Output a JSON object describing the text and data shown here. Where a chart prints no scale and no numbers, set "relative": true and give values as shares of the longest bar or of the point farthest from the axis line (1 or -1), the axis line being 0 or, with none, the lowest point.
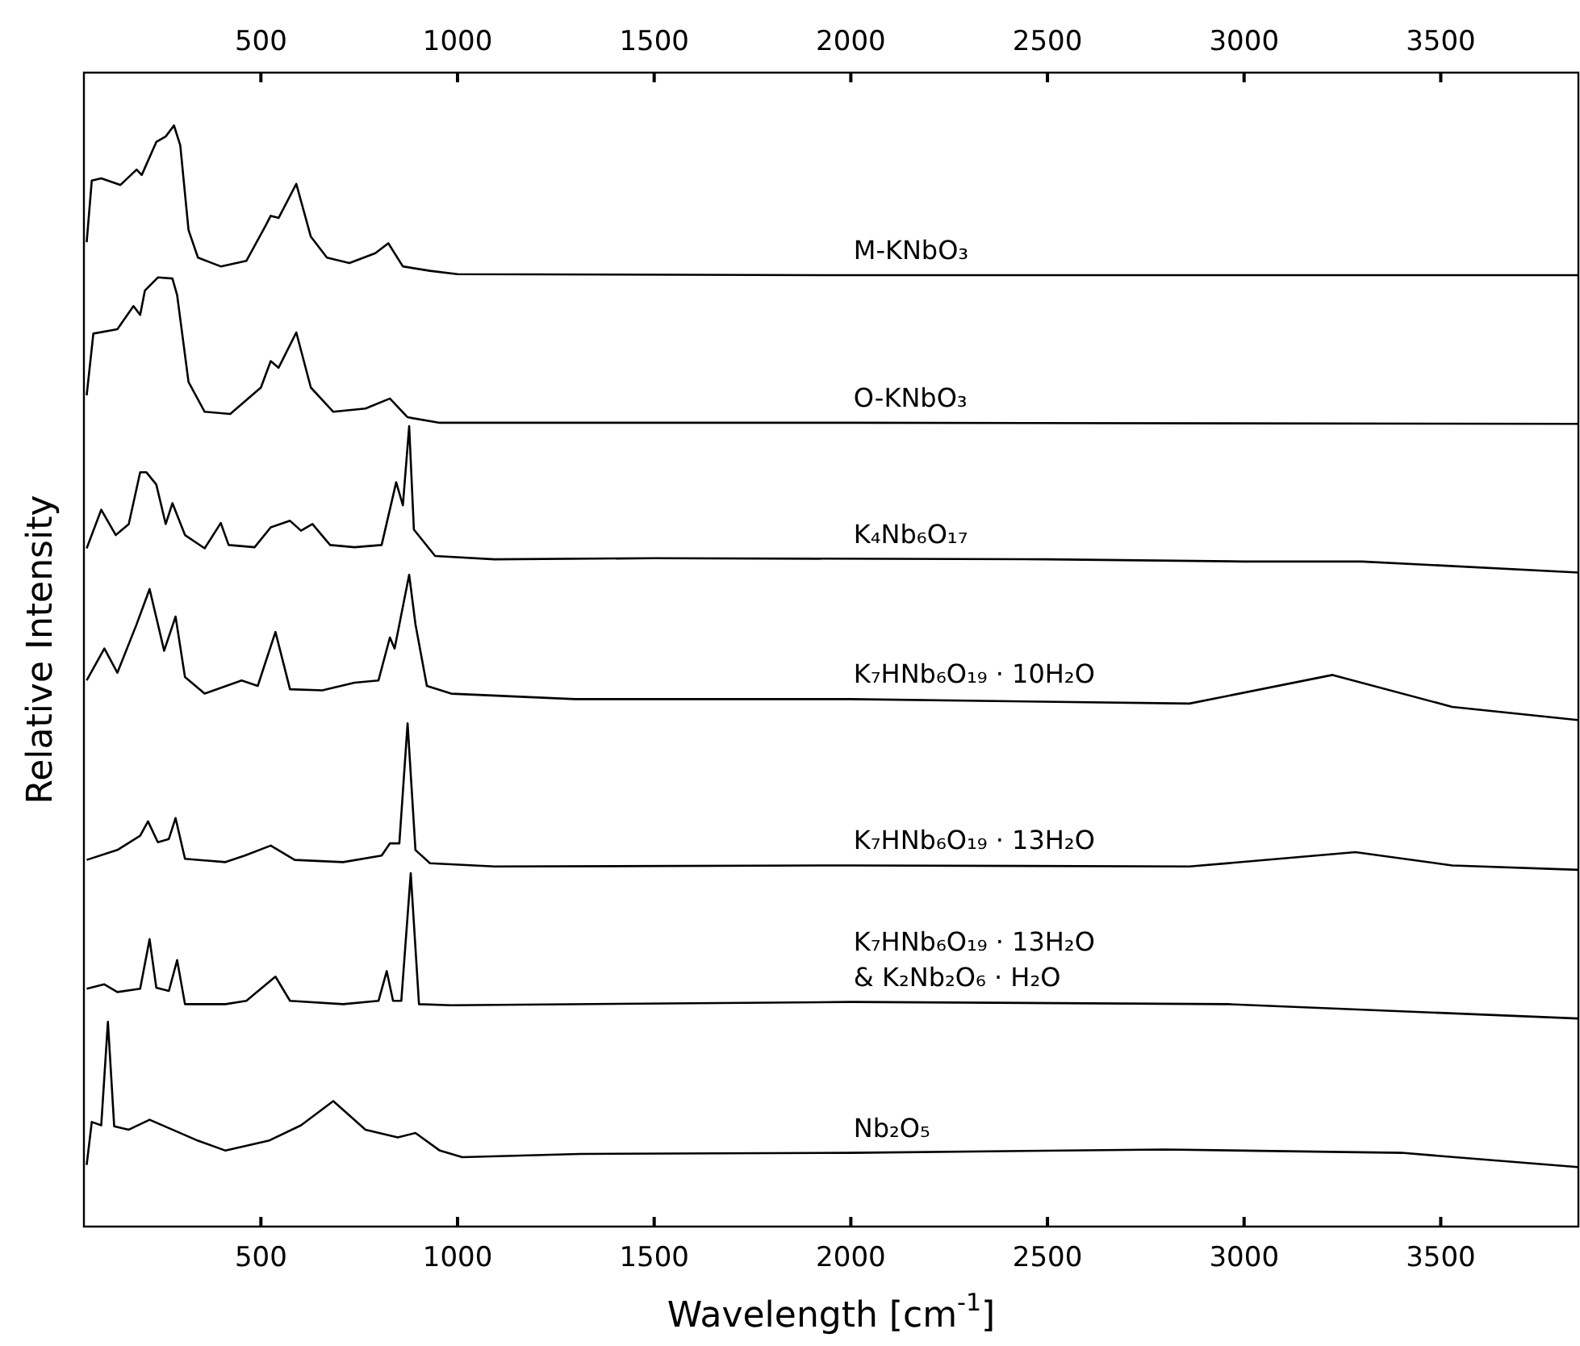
{
  "chart_data": {
    "type": "line",
    "relative": true,
    "xlabel": "Wavelength [cm$^{-1}$]",
    "ylabel": "Relative Intensity",
    "xlim": [
      50,
      3850
    ],
    "xticks": [
      500,
      1000,
      1500,
      2000,
      2500,
      3000,
      3500
    ],
    "x2lim": [
      50,
      3850
    ],
    "x2ticks": [
      500,
      1000,
      1500,
      2000,
      2500,
      3000,
      3500
    ],
    "tick_labels": "x",
    "series": [
      {
        "name": "M-KNbO₃",
        "color": "#000000",
        "x": [
          57,
          70,
          94,
          143,
          184,
          197,
          234,
          258,
          279,
          295,
          316,
          340,
          398,
          463,
          512,
          525,
          545,
          590,
          627,
          668,
          725,
          791,
          824,
          861,
          930,
          1000,
          2000,
          3850
        ],
        "values": [
          0.894,
          0.95,
          0.952,
          0.946,
          0.96,
          0.955,
          0.985,
          0.99,
          1,
          0.982,
          0.905,
          0.88,
          0.872,
          0.877,
          0.909,
          0.918,
          0.916,
          0.947,
          0.899,
          0.88,
          0.875,
          0.884,
          0.893,
          0.872,
          0.868,
          0.865,
          0.864,
          0.864
        ]
      },
      {
        "name": "O-KNbO₃",
        "color": "#000000",
        "x": [
          57,
          74,
          135,
          176,
          193,
          205,
          238,
          275,
          287,
          316,
          357,
          422,
          500,
          525,
          545,
          590,
          627,
          684,
          766,
          828,
          873,
          955,
          2000,
          3850
        ],
        "values": [
          0.755,
          0.811,
          0.815,
          0.836,
          0.828,
          0.85,
          0.862,
          0.861,
          0.846,
          0.767,
          0.74,
          0.738,
          0.762,
          0.786,
          0.78,
          0.812,
          0.762,
          0.74,
          0.743,
          0.752,
          0.735,
          0.73,
          0.73,
          0.729
        ]
      },
      {
        "name": "K₄Nb₆O₁₇",
        "color": "#000000",
        "x": [
          57,
          94,
          131,
          164,
          193,
          209,
          234,
          258,
          275,
          307,
          357,
          398,
          418,
          484,
          525,
          574,
          602,
          631,
          676,
          738,
          807,
          844,
          861,
          877,
          889,
          943,
          1094,
          1500,
          2500,
          3000,
          3300,
          3850
        ],
        "values": [
          0.616,
          0.651,
          0.628,
          0.638,
          0.685,
          0.685,
          0.674,
          0.638,
          0.657,
          0.628,
          0.616,
          0.639,
          0.619,
          0.617,
          0.635,
          0.641,
          0.632,
          0.638,
          0.619,
          0.617,
          0.619,
          0.676,
          0.655,
          0.727,
          0.633,
          0.609,
          0.606,
          0.607,
          0.606,
          0.604,
          0.604,
          0.594
        ]
      },
      {
        "name": "K₇HNb₆O₁₉ · 10H₂O",
        "color": "#000000",
        "x": [
          57,
          102,
          135,
          184,
          217,
          254,
          283,
          307,
          357,
          451,
          492,
          537,
          574,
          656,
          738,
          799,
          828,
          840,
          877,
          893,
          922,
          984,
          1299,
          2000,
          2861,
          3225,
          3529,
          3848
        ],
        "values": [
          0.496,
          0.525,
          0.503,
          0.547,
          0.579,
          0.523,
          0.554,
          0.499,
          0.484,
          0.496,
          0.491,
          0.54,
          0.488,
          0.487,
          0.494,
          0.496,
          0.535,
          0.525,
          0.592,
          0.547,
          0.491,
          0.484,
          0.479,
          0.479,
          0.475,
          0.501,
          0.472,
          0.46
        ]
      },
      {
        "name": "K₇HNb₆O₁₉ · 13H₂O",
        "color": "#000000",
        "x": [
          57,
          135,
          193,
          213,
          238,
          266,
          283,
          307,
          410,
          459,
          525,
          586,
          709,
          807,
          828,
          852,
          873,
          893,
          930,
          1094,
          2000,
          2861,
          3283,
          3529,
          3848
        ],
        "values": [
          0.333,
          0.342,
          0.355,
          0.368,
          0.349,
          0.352,
          0.371,
          0.334,
          0.331,
          0.337,
          0.346,
          0.333,
          0.331,
          0.337,
          0.348,
          0.348,
          0.457,
          0.342,
          0.33,
          0.327,
          0.328,
          0.327,
          0.34,
          0.328,
          0.324
        ]
      },
      {
        "name": "K₇HNb₆O₁₉ · 13H₂O\n& K₂Nb₂O₆ · H₂O",
        "color": "#000000",
        "x": [
          57,
          102,
          135,
          193,
          217,
          234,
          266,
          287,
          307,
          410,
          463,
          537,
          574,
          709,
          799,
          820,
          836,
          857,
          881,
          902,
          984,
          2000,
          2959,
          3848
        ],
        "values": [
          0.216,
          0.22,
          0.213,
          0.216,
          0.261,
          0.217,
          0.214,
          0.242,
          0.202,
          0.202,
          0.205,
          0.227,
          0.205,
          0.202,
          0.205,
          0.232,
          0.205,
          0.205,
          0.321,
          0.202,
          0.201,
          0.204,
          0.202,
          0.189
        ]
      },
      {
        "name": "Nb₂O₅",
        "color": "#000000",
        "x": [
          57,
          70,
          94,
          111,
          127,
          164,
          217,
          275,
          340,
          410,
          520,
          602,
          684,
          766,
          848,
          893,
          955,
          1012,
          1311,
          2000,
          2800,
          3400,
          3848
        ],
        "values": [
          0.056,
          0.095,
          0.092,
          0.186,
          0.091,
          0.088,
          0.097,
          0.088,
          0.078,
          0.069,
          0.078,
          0.092,
          0.114,
          0.088,
          0.081,
          0.085,
          0.069,
          0.063,
          0.066,
          0.067,
          0.07,
          0.067,
          0.054
        ]
      }
    ]
  }
}
